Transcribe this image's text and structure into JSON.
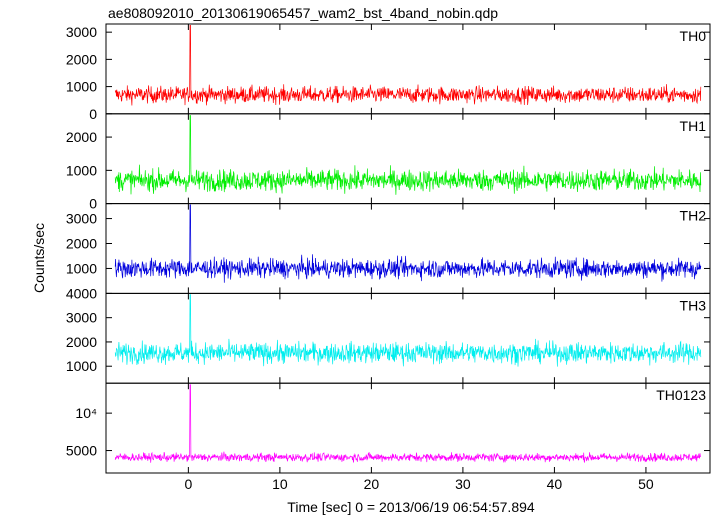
{
  "chart_data": {
    "type": "line",
    "title": "ae808092010_20130619065457_wam2_bst_4band_nobin.qdp",
    "xlabel": "Time [sec] 0 = 2013/06/19 06:54:57.894",
    "ylabel": "Counts/sec",
    "xlim": [
      -9,
      57
    ],
    "x_ticks": [
      0,
      10,
      20,
      30,
      40,
      50
    ],
    "x_tick_labels": [
      "0",
      "10",
      "20",
      "30",
      "40",
      "50"
    ],
    "grid": false,
    "panels": [
      {
        "name": "TH0",
        "color": "#ff0000",
        "x_start": -8,
        "x_end": 56,
        "ylim": [
          0,
          3300
        ],
        "y_ticks": [
          0,
          1000,
          2000,
          3000
        ],
        "y_tick_labels": [
          "0",
          "1000",
          "2000",
          "3000"
        ],
        "baseline": 700,
        "noise": 300,
        "peak_x": 0.2,
        "peak_y": 3250
      },
      {
        "name": "TH1",
        "color": "#00ee00",
        "x_start": -8,
        "x_end": 56,
        "ylim": [
          0,
          2700
        ],
        "y_ticks": [
          0,
          1000,
          2000
        ],
        "y_tick_labels": [
          "0",
          "1000",
          "2000"
        ],
        "baseline": 700,
        "noise": 320,
        "peak_x": 0.2,
        "peak_y": 2650
      },
      {
        "name": "TH2",
        "color": "#0000dd",
        "x_start": -8,
        "x_end": 56,
        "ylim": [
          0,
          3600
        ],
        "y_ticks": [
          1000,
          2000,
          3000
        ],
        "y_tick_labels": [
          "1000",
          "2000",
          "3000"
        ],
        "baseline": 1000,
        "noise": 380,
        "peak_x": 0.2,
        "peak_y": 3550
      },
      {
        "name": "TH3",
        "color": "#00eeee",
        "x_start": -8,
        "x_end": 56,
        "ylim": [
          300,
          4000
        ],
        "y_ticks": [
          1000,
          2000,
          3000,
          4000
        ],
        "y_tick_labels": [
          "1000",
          "2000",
          "3000",
          "4000"
        ],
        "baseline": 1550,
        "noise": 420,
        "peak_x": 0.2,
        "peak_y": 3950
      },
      {
        "name": "TH0123",
        "color": "#ff00ff",
        "x_start": -8,
        "x_end": 56,
        "ylim": [
          2000,
          14000
        ],
        "y_ticks": [
          5000,
          10000
        ],
        "y_tick_labels": [
          "5000",
          "10⁴"
        ],
        "baseline": 4100,
        "noise": 550,
        "peak_x": 0.2,
        "peak_y": 13800
      }
    ]
  }
}
